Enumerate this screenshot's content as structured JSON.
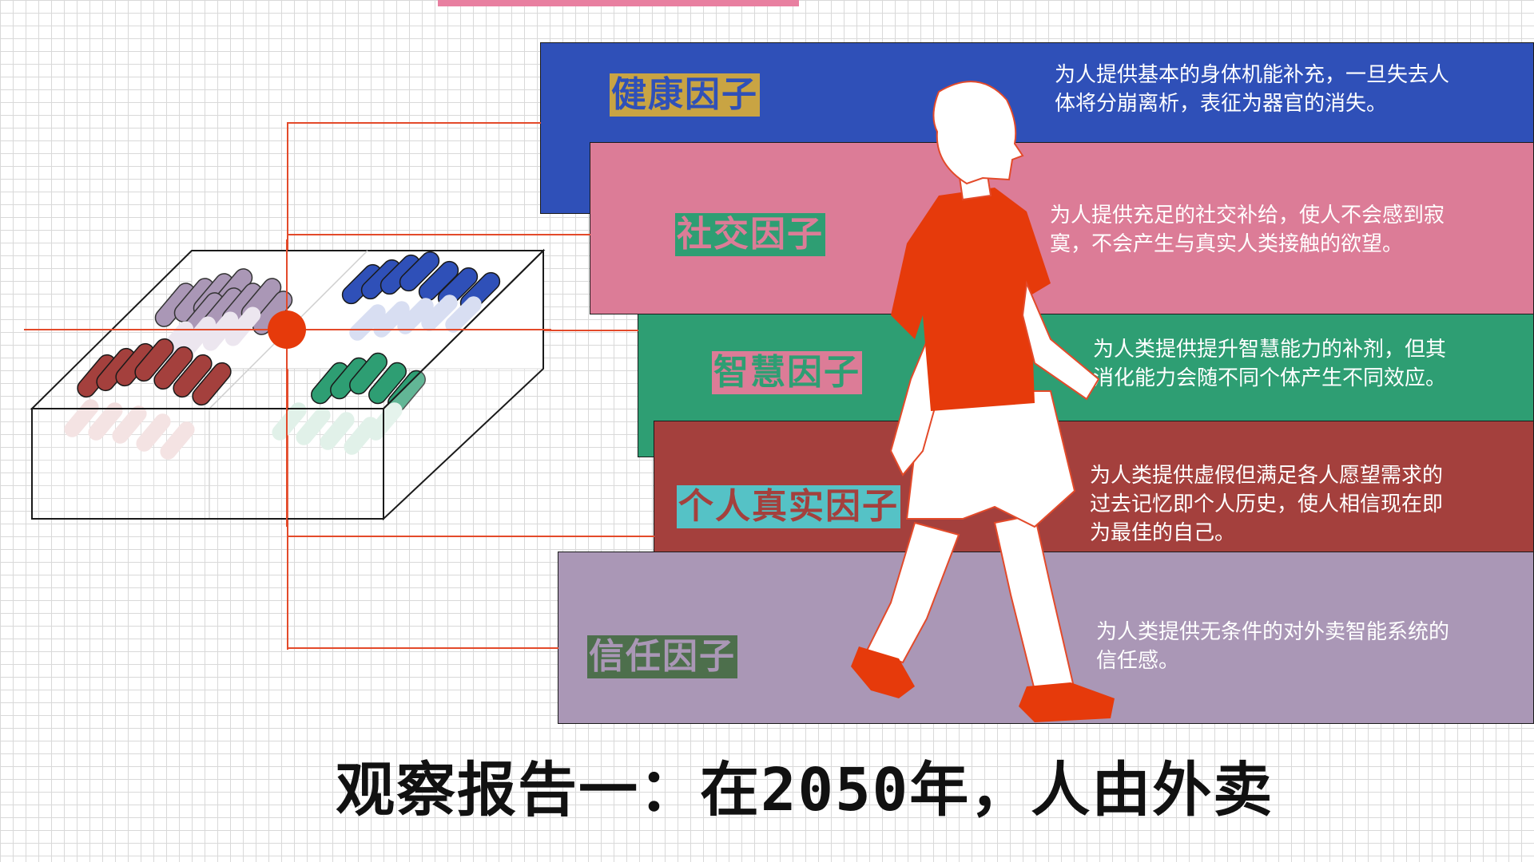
{
  "colors": {
    "health": "#2f50b8",
    "social": "#dc7c97",
    "wisdom": "#2e9e73",
    "real": "#a4403d",
    "trust": "#aa97b6",
    "accent": "#e63a0b"
  },
  "factors": [
    {
      "title": "健康因子",
      "desc_lines": [
        "为人提供基本的身体机能补充，一旦失去人",
        "体将分崩离析，表征为器官的消失。"
      ]
    },
    {
      "title": "社交因子",
      "desc_lines": [
        "为人提供充足的社交补给，使人不会感到寂",
        "寞，不会产生与真实人类接触的欲望。"
      ]
    },
    {
      "title": "智慧因子",
      "desc_lines": [
        "为人类提供提升智慧能力的补剂，但其",
        "消化能力会随不同个体产生不同效应。"
      ]
    },
    {
      "title": "个人真实因子",
      "desc_lines": [
        "为人类提供虚假但满足各人愿望需求的",
        "过去记忆即个人历史，使人相信现在即",
        "为最佳的自己。"
      ]
    },
    {
      "title": "信任因子",
      "desc_lines": [
        "为人类提供无条件的对外卖智能系统的",
        "信任感。"
      ]
    }
  ],
  "caption": "观察报告一：在2050年，人由外卖"
}
